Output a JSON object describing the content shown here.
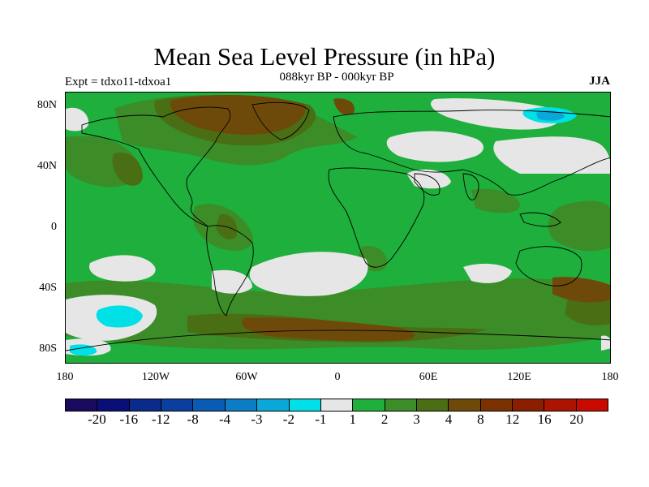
{
  "title": "Mean Sea Level Pressure (in hPa)",
  "subtitle": "088kyr BP - 000kyr BP",
  "experiment": "Expt = tdxo11-tdxoa1",
  "season": "JJA",
  "lat_labels": [
    "80N",
    "40N",
    "0",
    "40S",
    "80S"
  ],
  "lon_labels": [
    "180",
    "120W",
    "60W",
    "0",
    "60E",
    "120E",
    "180"
  ],
  "colorbar": {
    "labels": [
      "-20",
      "-16",
      "-12",
      "-8",
      "-4",
      "-3",
      "-2",
      "-1",
      "1",
      "2",
      "3",
      "4",
      "8",
      "12",
      "16",
      "20"
    ],
    "colors": [
      "#1a0a5e",
      "#0a0f78",
      "#0a2a8c",
      "#0a3fa0",
      "#0a5bb4",
      "#0a7dc6",
      "#0aa8d8",
      "#00e0e6",
      "#e6e6e6",
      "#1eaf3c",
      "#3c8c28",
      "#4a6e14",
      "#6e4a0a",
      "#7a3200",
      "#8c1e00",
      "#aa1400",
      "#c80a00"
    ]
  },
  "colors": {
    "weak_positive": "#e6e6e6",
    "green": "#1eaf3c",
    "olive": "#3c8c28",
    "dark_olive": "#4a6e14",
    "brown": "#6e4a0a",
    "cyan": "#00e0e6",
    "teal": "#0aa8d8"
  }
}
